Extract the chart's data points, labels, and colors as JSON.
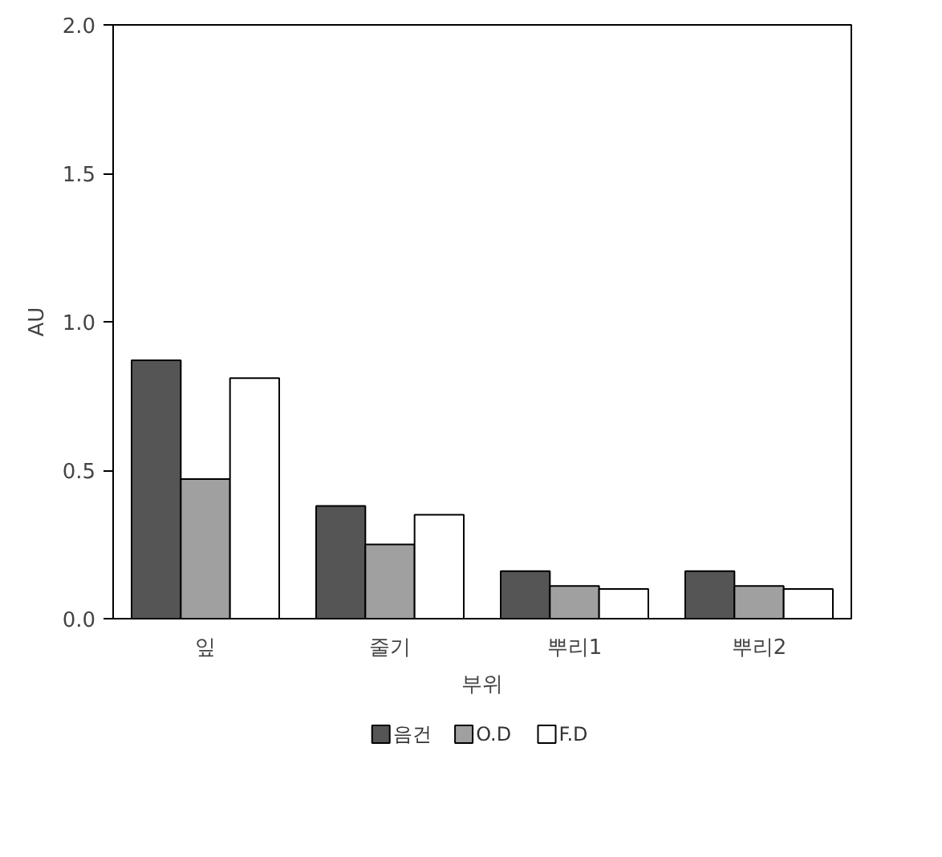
{
  "chart_data": {
    "type": "bar",
    "xlabel": "부위",
    "ylabel": "AU",
    "categories": [
      "잎",
      "줄기",
      "뿌리1",
      "뿌리2"
    ],
    "series": [
      {
        "name": "음건",
        "color": "#555555",
        "values": [
          0.87,
          0.38,
          0.16,
          0.16
        ]
      },
      {
        "name": "O.D",
        "color": "#a0a0a0",
        "values": [
          0.47,
          0.25,
          0.11,
          0.11
        ]
      },
      {
        "name": "F.D",
        "color": "#ffffff",
        "values": [
          0.81,
          0.35,
          0.1,
          0.1
        ]
      }
    ],
    "ylim": [
      0,
      2.0
    ],
    "yticks": [
      {
        "value": 0,
        "label": "0.0"
      },
      {
        "value": 0.5,
        "label": "0.5"
      },
      {
        "value": 1.0,
        "label": "1.0"
      },
      {
        "value": 1.5,
        "label": "1.5"
      },
      {
        "value": 2.0,
        "label": "2.0"
      }
    ],
    "grid": false,
    "legend": "bottom"
  }
}
